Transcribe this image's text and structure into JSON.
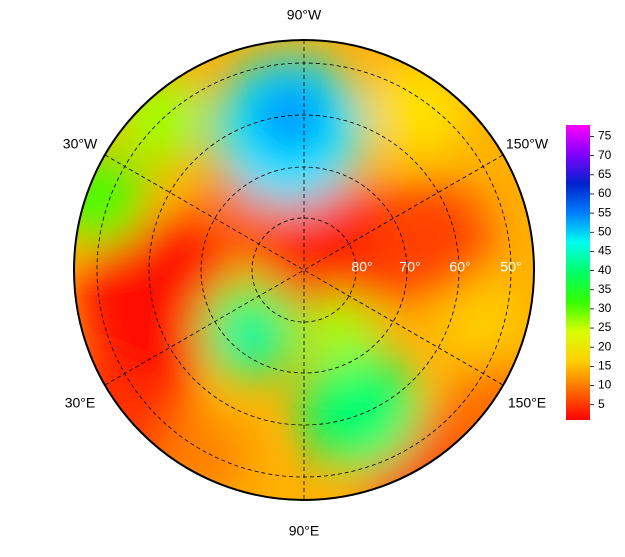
{
  "map": {
    "longitude_labels": [
      "90°W",
      "30°W",
      "150°W",
      "30°E",
      "150°E",
      "90°E"
    ],
    "latitude_labels": [
      "80°",
      "70°",
      "60°",
      "50°"
    ],
    "colorbar": {
      "lim": [
        1,
        78
      ],
      "ticks": [
        5,
        10,
        15,
        20,
        25,
        30,
        35,
        40,
        45,
        50,
        55,
        60,
        65,
        70,
        75
      ],
      "colors": [
        "#ff0000",
        "#ff6a00",
        "#ffd000",
        "#d8ff00",
        "#33ff00",
        "#00ff66",
        "#00ffee",
        "#0080ff",
        "#0022cc",
        "#8000ff",
        "#ff00ff"
      ]
    }
  }
}
